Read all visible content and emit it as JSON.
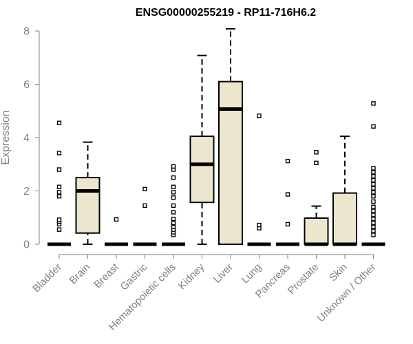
{
  "chart_data": {
    "type": "box",
    "title": "ENSG00000255219 - RP11-716H6.2",
    "xlabel": "",
    "ylabel": "Expression",
    "ylim": [
      0,
      8
    ],
    "yticks": [
      0,
      2,
      4,
      6,
      8
    ],
    "box_fill": "#ede6ce",
    "box_stroke": "#000000",
    "categories": [
      "Bladder",
      "Brain",
      "Breast",
      "Gastric",
      "Hematopoietic cells",
      "Kidney",
      "Liver",
      "Lung",
      "Pancreas",
      "Prostate",
      "Skin",
      "Unknown / Other"
    ],
    "boxes": [
      {
        "category": "Bladder",
        "lower_whisker": 0,
        "q1": 0,
        "median": 0,
        "q3": 0,
        "upper_whisker": 0,
        "outliers": [
          0.55,
          0.75,
          0.85,
          0.92,
          1.8,
          1.95,
          2.15,
          2.8,
          3.42,
          4.55
        ]
      },
      {
        "category": "Brain",
        "lower_whisker": 0,
        "q1": 0.42,
        "median": 2.0,
        "q3": 2.5,
        "upper_whisker": 3.83,
        "outliers": []
      },
      {
        "category": "Breast",
        "lower_whisker": 0,
        "q1": 0,
        "median": 0,
        "q3": 0,
        "upper_whisker": 0,
        "outliers": [
          0.93
        ]
      },
      {
        "category": "Gastric",
        "lower_whisker": 0,
        "q1": 0,
        "median": 0,
        "q3": 0,
        "upper_whisker": 0,
        "outliers": [
          1.45,
          2.07
        ]
      },
      {
        "category": "Hematopoietic cells",
        "lower_whisker": 0,
        "q1": 0,
        "median": 0,
        "q3": 0,
        "upper_whisker": 0,
        "outliers": [
          0.35,
          0.45,
          0.55,
          0.65,
          0.8,
          0.95,
          1.2,
          1.45,
          1.75,
          1.95,
          2.15,
          2.5,
          2.8,
          2.92
        ]
      },
      {
        "category": "Kidney",
        "lower_whisker": 0,
        "q1": 1.57,
        "median": 3.0,
        "q3": 4.05,
        "upper_whisker": 7.08,
        "outliers": []
      },
      {
        "category": "Liver",
        "lower_whisker": 0,
        "q1": 0,
        "median": 5.07,
        "q3": 6.1,
        "upper_whisker": 8.08,
        "outliers": []
      },
      {
        "category": "Lung",
        "lower_whisker": 0,
        "q1": 0,
        "median": 0,
        "q3": 0,
        "upper_whisker": 0,
        "outliers": [
          0.6,
          0.72,
          4.82
        ]
      },
      {
        "category": "Pancreas",
        "lower_whisker": 0,
        "q1": 0,
        "median": 0,
        "q3": 0,
        "upper_whisker": 0,
        "outliers": [
          0.75,
          1.87,
          3.12
        ]
      },
      {
        "category": "Prostate",
        "lower_whisker": 0,
        "q1": 0,
        "median": 0,
        "q3": 0.98,
        "upper_whisker": 1.43,
        "outliers": [
          3.05,
          3.45
        ]
      },
      {
        "category": "Skin",
        "lower_whisker": 0,
        "q1": 0,
        "median": 0,
        "q3": 1.92,
        "upper_whisker": 4.05,
        "outliers": []
      },
      {
        "category": "Unknown / Other",
        "lower_whisker": 0,
        "q1": 0,
        "median": 0,
        "q3": 0,
        "upper_whisker": 0,
        "outliers": [
          0.35,
          0.5,
          0.65,
          0.8,
          0.95,
          1.1,
          1.25,
          1.4,
          1.6,
          1.8,
          1.95,
          2.1,
          2.25,
          2.4,
          2.55,
          2.7,
          2.85,
          4.42,
          5.28
        ]
      }
    ]
  }
}
